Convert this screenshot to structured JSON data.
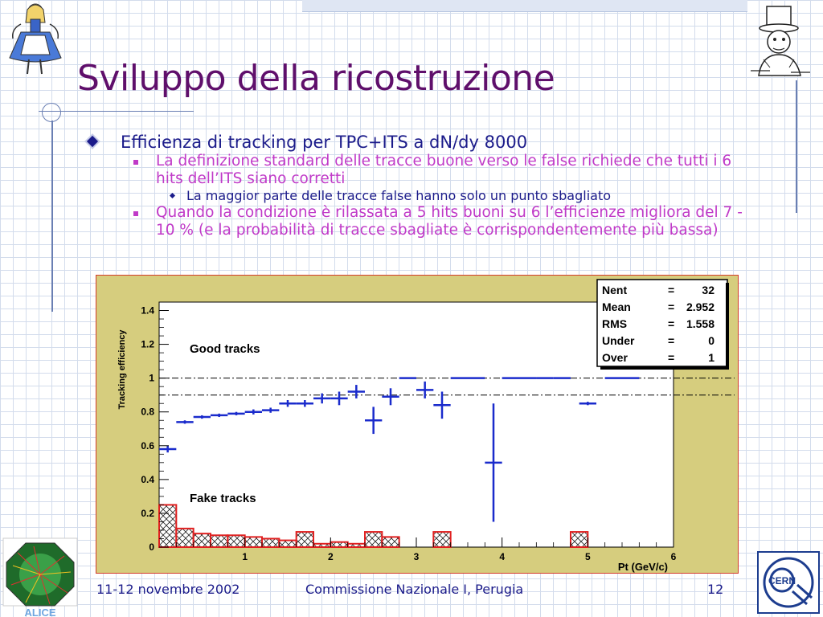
{
  "slide": {
    "title": "Sviluppo della ricostruzione",
    "bullets": {
      "l1": "Efficienza di tracking per TPC+ITS a dN/dy 8000",
      "l2a": "La definizione standard delle tracce buone verso le false richiede che tutti i 6 hits dell’ITS siano corretti",
      "l3": "La maggior parte delle tracce false hanno solo un punto sbagliato",
      "l2b": "Quando la condizione è rilassata a 5 hits buoni su 6 l’efficienze migliora del 7 - 10 % (e la probabilità di tracce sbagliate è corrispondentemente più bassa)"
    },
    "footer": {
      "date": "11-12 novembre 2002",
      "venue": "Commissione Nazionale I, Perugia",
      "page": "12"
    },
    "logos": {
      "left_text": "ALICE",
      "right_text": "CERN"
    }
  },
  "chart_data": {
    "type": "scatter",
    "ylabel": "Tracking efficiency",
    "xlabel": "Pt (GeV/c)",
    "xlim": [
      0,
      6.0
    ],
    "ylim": [
      0,
      1.45
    ],
    "x_ticks": [
      "1",
      "2",
      "3",
      "4",
      "5",
      "6"
    ],
    "y_ticks": [
      "0",
      "0.2",
      "0.4",
      "0.6",
      "0.8",
      "1",
      "1.2",
      "1.4"
    ],
    "annotations": [
      "Good tracks",
      "Fake tracks"
    ],
    "reference_lines": [
      1.0,
      0.9
    ],
    "stats": [
      {
        "label": "Nent",
        "value": "32"
      },
      {
        "label": "Mean",
        "value": "2.952"
      },
      {
        "label": "RMS",
        "value": "1.558"
      },
      {
        "label": "Under",
        "value": "0"
      },
      {
        "label": "Over",
        "value": "1"
      }
    ],
    "series": [
      {
        "name": "Good tracks",
        "points": [
          {
            "x": 0.1,
            "y": 0.58,
            "xerr": 0.1,
            "yerr": 0.02
          },
          {
            "x": 0.3,
            "y": 0.74,
            "xerr": 0.1,
            "yerr": 0.01
          },
          {
            "x": 0.5,
            "y": 0.77,
            "xerr": 0.1,
            "yerr": 0.01
          },
          {
            "x": 0.7,
            "y": 0.78,
            "xerr": 0.1,
            "yerr": 0.01
          },
          {
            "x": 0.9,
            "y": 0.79,
            "xerr": 0.1,
            "yerr": 0.01
          },
          {
            "x": 1.1,
            "y": 0.8,
            "xerr": 0.1,
            "yerr": 0.015
          },
          {
            "x": 1.3,
            "y": 0.81,
            "xerr": 0.1,
            "yerr": 0.015
          },
          {
            "x": 1.5,
            "y": 0.85,
            "xerr": 0.1,
            "yerr": 0.02
          },
          {
            "x": 1.7,
            "y": 0.85,
            "xerr": 0.1,
            "yerr": 0.02
          },
          {
            "x": 1.9,
            "y": 0.88,
            "xerr": 0.1,
            "yerr": 0.03
          },
          {
            "x": 2.1,
            "y": 0.88,
            "xerr": 0.1,
            "yerr": 0.04
          },
          {
            "x": 2.3,
            "y": 0.92,
            "xerr": 0.1,
            "yerr": 0.04
          },
          {
            "x": 2.5,
            "y": 0.75,
            "xerr": 0.1,
            "yerr": 0.08
          },
          {
            "x": 2.7,
            "y": 0.89,
            "xerr": 0.1,
            "yerr": 0.05
          },
          {
            "x": 2.9,
            "y": 1.0,
            "xerr": 0.1,
            "yerr": 0.0
          },
          {
            "x": 3.1,
            "y": 0.93,
            "xerr": 0.1,
            "yerr": 0.05
          },
          {
            "x": 3.3,
            "y": 0.84,
            "xerr": 0.1,
            "yerr": 0.08
          },
          {
            "x": 3.5,
            "y": 1.0,
            "xerr": 0.1,
            "yerr": 0.0
          },
          {
            "x": 3.7,
            "y": 1.0,
            "xerr": 0.1,
            "yerr": 0.0
          },
          {
            "x": 3.9,
            "y": 0.5,
            "xerr": 0.1,
            "yerr": 0.35
          },
          {
            "x": 4.1,
            "y": 1.0,
            "xerr": 0.1,
            "yerr": 0.0
          },
          {
            "x": 4.3,
            "y": 1.0,
            "xerr": 0.1,
            "yerr": 0.0
          },
          {
            "x": 4.5,
            "y": 1.0,
            "xerr": 0.1,
            "yerr": 0.0
          },
          {
            "x": 4.7,
            "y": 1.0,
            "xerr": 0.1,
            "yerr": 0.0
          },
          {
            "x": 5.0,
            "y": 0.85,
            "xerr": 0.1,
            "yerr": 0.01
          },
          {
            "x": 5.3,
            "y": 1.0,
            "xerr": 0.1,
            "yerr": 0.0
          },
          {
            "x": 5.5,
            "y": 1.0,
            "xerr": 0.1,
            "yerr": 0.0
          }
        ]
      },
      {
        "name": "Fake tracks",
        "bin_width": 0.2,
        "bins": [
          {
            "x": 0.0,
            "y": 0.25
          },
          {
            "x": 0.2,
            "y": 0.11
          },
          {
            "x": 0.4,
            "y": 0.08
          },
          {
            "x": 0.6,
            "y": 0.07
          },
          {
            "x": 0.8,
            "y": 0.07
          },
          {
            "x": 1.0,
            "y": 0.06
          },
          {
            "x": 1.2,
            "y": 0.05
          },
          {
            "x": 1.4,
            "y": 0.04
          },
          {
            "x": 1.6,
            "y": 0.09
          },
          {
            "x": 1.8,
            "y": 0.02
          },
          {
            "x": 2.0,
            "y": 0.03
          },
          {
            "x": 2.2,
            "y": 0.02
          },
          {
            "x": 2.4,
            "y": 0.09
          },
          {
            "x": 2.6,
            "y": 0.06
          },
          {
            "x": 2.8,
            "y": 0.0
          },
          {
            "x": 3.0,
            "y": 0.0
          },
          {
            "x": 3.2,
            "y": 0.09
          },
          {
            "x": 3.4,
            "y": 0.0
          },
          {
            "x": 4.8,
            "y": 0.09
          }
        ]
      }
    ]
  }
}
